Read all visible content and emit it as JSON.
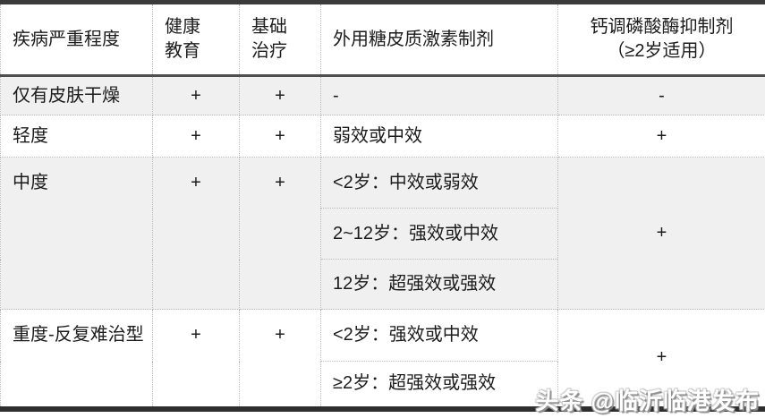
{
  "colors": {
    "row_alt_bg": "#f0f0f0",
    "border_dark_top": "#3b3b3b",
    "border_dark_bottom": "#2e2e2e",
    "border_header_rule": "#4e4e4e",
    "border_dotted": "#b9b9b9",
    "text": "#1c1c1c",
    "watermark_fill": "#ffffff",
    "watermark_shadow": "#8f8f8f"
  },
  "table": {
    "headers": {
      "severity": "疾病严重程度",
      "health": "健康\n教育",
      "basic": "基础\n治疗",
      "steroid": "外用糖皮质激素制剂",
      "calcineurin": "钙调磷酸酶抑制剂\n（≥2岁适用）"
    },
    "rows": {
      "dry": {
        "label": "仅有皮肤干燥",
        "health": "+",
        "basic": "+",
        "steroid": "-",
        "calcineurin": "-"
      },
      "mild": {
        "label": "轻度",
        "health": "+",
        "basic": "+",
        "steroid": "弱效或中效",
        "calcineurin": "+"
      },
      "moderate": {
        "label": "中度",
        "health": "+",
        "basic": "+",
        "steroid_by_age": [
          "<2岁：中效或弱效",
          "2~12岁：强效或中效",
          "12岁：超强效或强效"
        ],
        "calcineurin": "+"
      },
      "severe": {
        "label": "重度-反复难治型",
        "health": "+",
        "basic": "+",
        "steroid_by_age": [
          "<2岁：强效或中效",
          "≥2岁：超强效或强效"
        ],
        "calcineurin": "+"
      }
    }
  },
  "watermark": {
    "text": "头条 @临沂临港发布"
  },
  "chart_data": {
    "type": "table",
    "title": "",
    "columns": [
      "疾病严重程度",
      "健康教育",
      "基础治疗",
      "外用糖皮质激素制剂",
      "钙调磷酸酶抑制剂（≥2岁适用）"
    ],
    "rows": [
      [
        "仅有皮肤干燥",
        "+",
        "+",
        "-",
        "-"
      ],
      [
        "轻度",
        "+",
        "+",
        "弱效或中效",
        "+"
      ],
      [
        "中度",
        "+",
        "+",
        "<2岁：中效或弱效；2~12岁：强效或中效；12岁：超强效或强效",
        "+"
      ],
      [
        "重度-反复难治型",
        "+",
        "+",
        "<2岁：强效或中效；≥2岁：超强效或强效",
        "+"
      ]
    ],
    "layout": {
      "row_alt_shading": [
        1,
        3
      ],
      "grid": "dotted"
    }
  }
}
